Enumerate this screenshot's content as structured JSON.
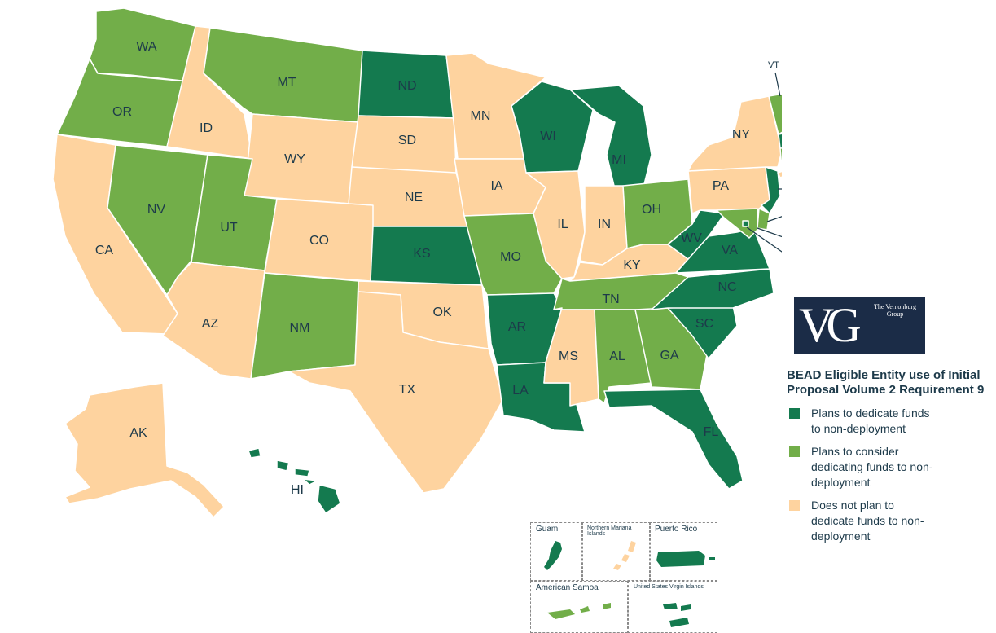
{
  "colors": {
    "dedicate": "#147a4f",
    "consider": "#72ae49",
    "not": "#fed39f",
    "border": "#ffffff",
    "label": "#1d3a4a",
    "logo_bg": "#1b2c47"
  },
  "logo": {
    "monogram": "VG",
    "name": "The Vernonburg Group"
  },
  "legend": {
    "title": "BEAD Eligible Entity use of Initial Proposal Volume 2 Requirement 9",
    "items": [
      {
        "key": "dedicate",
        "label": "Plans to dedicate funds to non-deployment"
      },
      {
        "key": "consider",
        "label": "Plans to consider dedicating funds to non-deployment"
      },
      {
        "key": "not",
        "label": "Does not plan to dedicate funds to non-deployment"
      }
    ]
  },
  "states": {
    "WA": "consider",
    "OR": "consider",
    "CA": "not",
    "NV": "consider",
    "ID": "not",
    "MT": "consider",
    "WY": "not",
    "UT": "consider",
    "AZ": "not",
    "CO": "not",
    "NM": "consider",
    "ND": "dedicate",
    "SD": "not",
    "NE": "not",
    "KS": "dedicate",
    "OK": "not",
    "TX": "not",
    "MN": "not",
    "IA": "not",
    "MO": "consider",
    "AR": "dedicate",
    "LA": "dedicate",
    "WI": "dedicate",
    "IL": "not",
    "MI": "dedicate",
    "IN": "not",
    "OH": "consider",
    "KY": "not",
    "TN": "consider",
    "MS": "not",
    "AL": "consider",
    "GA": "consider",
    "FL": "dedicate",
    "SC": "dedicate",
    "NC": "dedicate",
    "VA": "dedicate",
    "WV": "dedicate",
    "PA": "not",
    "NY": "not",
    "VT": "consider",
    "NH": "consider",
    "ME": "dedicate",
    "MA": "dedicate",
    "CT": "consider",
    "RI": "consider",
    "NJ": "dedicate",
    "DE": "consider",
    "MD": "consider",
    "DC": "dedicate",
    "AK": "not",
    "HI": "dedicate"
  },
  "territories": [
    {
      "id": "guam",
      "name": "Guam",
      "status": "dedicate"
    },
    {
      "id": "nmi",
      "name": "Northern Mariana Islands",
      "status": "not"
    },
    {
      "id": "pr",
      "name": "Puerto Rico",
      "status": "dedicate"
    },
    {
      "id": "as",
      "name": "American Samoa",
      "status": "consider"
    },
    {
      "id": "vi",
      "name": "United States Virgin Islands",
      "status": "dedicate"
    }
  ]
}
